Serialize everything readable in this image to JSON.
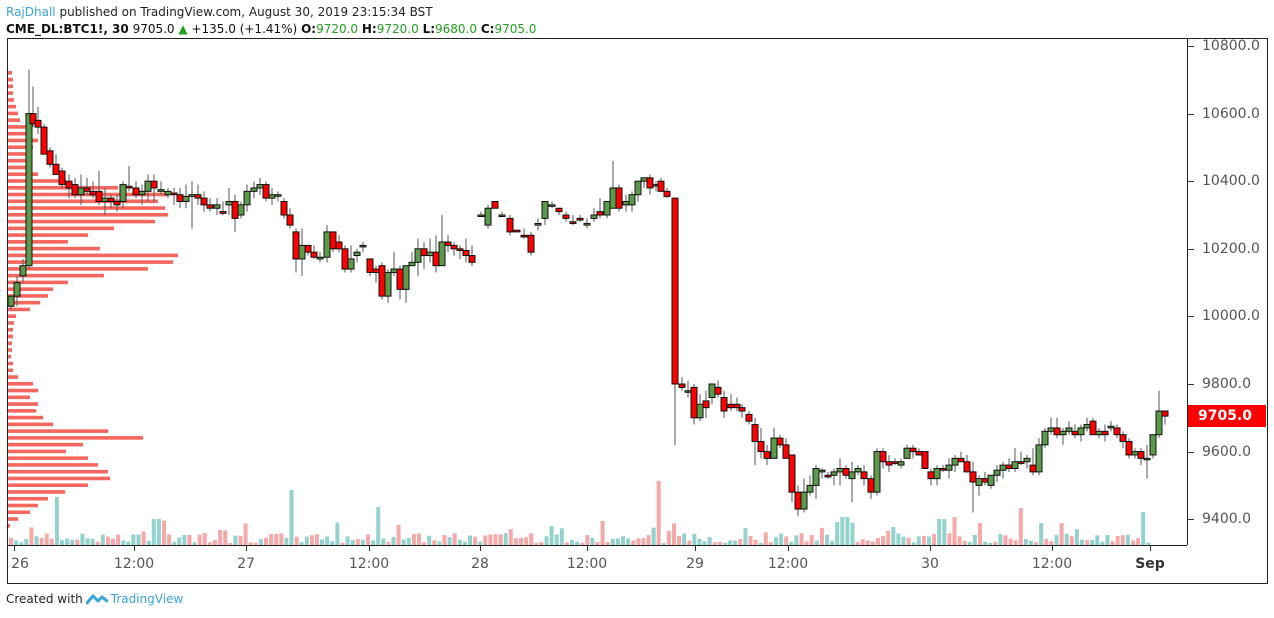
{
  "header": {
    "author": "RajDhall",
    "published_text": " published on TradingView.com, August 30, 2019 23:15:34 BST",
    "symbol": "CME_DL:BTC1!, 30",
    "last_price": "9705.0",
    "change": "+135.0 (+1.41%)",
    "ohlc": {
      "o_label": "O:",
      "o": "9720.0",
      "h_label": "H:",
      "h": "9720.0",
      "l_label": "L:",
      "l": "9680.0",
      "c_label": "C:",
      "c": "9705.0"
    }
  },
  "footer": {
    "created_with": "Created with",
    "brand": "TradingView"
  },
  "colors": {
    "up": "#5a9a4a",
    "down": "#ff0000",
    "vol_up": "#93d2cd",
    "vol_down": "#f6a9a9",
    "profile": "#f45a50",
    "last_price_bg": "#ff0000",
    "author": "#3aa3dd"
  },
  "chart_data": {
    "type": "candlestick",
    "title": "CME_DL:BTC1!, 30",
    "xlabel": "",
    "ylabel": "",
    "ylim": [
      9330,
      10830
    ],
    "grid": false,
    "y_ticks": [
      "10800.0",
      "10600.0",
      "10400.0",
      "10200.0",
      "10000.0",
      "9800.0",
      "9600.0",
      "9400.0"
    ],
    "x_ticks": [
      "26",
      "12:00",
      "27",
      "12:00",
      "28",
      "12:00",
      "29",
      "12:00",
      "30",
      "12:00",
      "Sep"
    ],
    "last_price_label": "9705.0",
    "overlays": [
      "volume profile (left)",
      "volume histogram (bottom)"
    ],
    "approx_path": [
      {
        "x": "26 00:00",
        "close": 10050
      },
      {
        "x": "26 02:00",
        "close": 10600
      },
      {
        "x": "26 06:00",
        "close": 10420
      },
      {
        "x": "26 12:00",
        "close": 10380
      },
      {
        "x": "27 00:00",
        "close": 10350
      },
      {
        "x": "27 06:00",
        "close": 10170
      },
      {
        "x": "27 12:00",
        "close": 10100
      },
      {
        "x": "27 18:00",
        "close": 10170
      },
      {
        "x": "28 06:00",
        "close": 10280
      },
      {
        "x": "28 12:00",
        "close": 10300
      },
      {
        "x": "28 18:00",
        "close": 10400
      },
      {
        "x": "28 20:00",
        "close": 9800
      },
      {
        "x": "29 06:00",
        "close": 9620
      },
      {
        "x": "29 09:00",
        "close": 9480
      },
      {
        "x": "29 18:00",
        "close": 9560
      },
      {
        "x": "30 00:00",
        "close": 9490
      },
      {
        "x": "30 12:00",
        "close": 9660
      },
      {
        "x": "30 22:00",
        "close": 9705
      }
    ]
  }
}
